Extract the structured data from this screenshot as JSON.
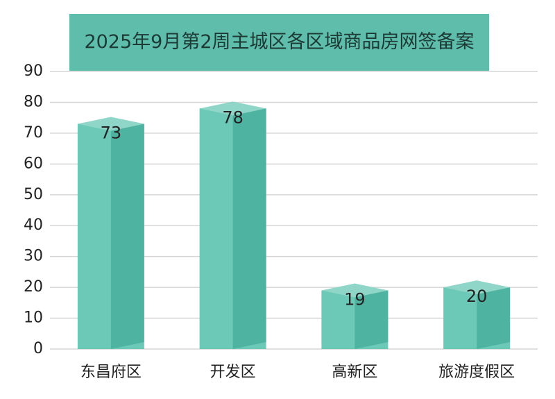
{
  "chart_data": {
    "type": "bar",
    "title": "2025年9月第2周主城区各区域商品房网签备案",
    "categories": [
      "东昌府区",
      "开发区",
      "高新区",
      "旅游度假区"
    ],
    "values": [
      73,
      78,
      19,
      20
    ],
    "color": "#6cc9b8",
    "ylim": [
      0,
      90
    ],
    "yticks": [
      0,
      10,
      20,
      30,
      40,
      50,
      60,
      70,
      80,
      90
    ],
    "grid": true
  }
}
